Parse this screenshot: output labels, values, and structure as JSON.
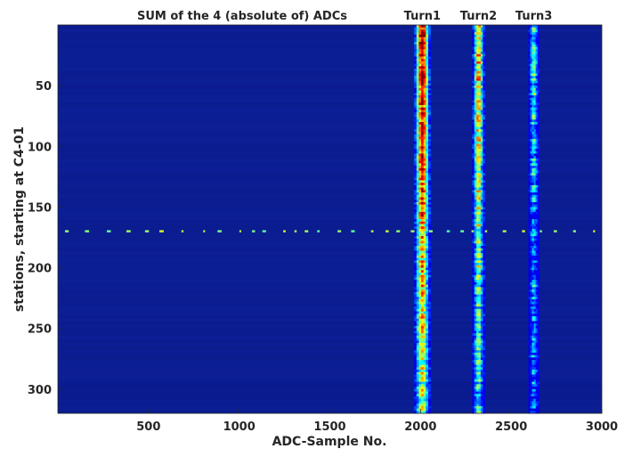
{
  "chart_data": {
    "type": "heatmap",
    "title": "SUM of the 4 (absolute of) ADCs",
    "xlabel": "ADC-Sample No.",
    "ylabel": "stations, starting at C4-01",
    "xlim": [
      0,
      3000
    ],
    "ylim": [
      0,
      320
    ],
    "y_reversed": true,
    "x_ticks": [
      500,
      1000,
      1500,
      2000,
      2500,
      3000
    ],
    "y_ticks": [
      50,
      100,
      150,
      200,
      250,
      300
    ],
    "colormap": "jet",
    "background_color": "#0a1a8c",
    "annotations": [
      {
        "text": "Turn1",
        "x": 2010
      },
      {
        "text": "Turn2",
        "x": 2320
      },
      {
        "text": "Turn3",
        "x": 2625
      }
    ],
    "bands": [
      {
        "name": "Turn1",
        "x_center": 2010,
        "width": 90,
        "intensity_start": 1.0,
        "intensity_end": 0.55
      },
      {
        "name": "Turn2",
        "x_center": 2320,
        "width": 70,
        "intensity_start": 0.72,
        "intensity_end": 0.38
      },
      {
        "name": "Turn3",
        "x_center": 2625,
        "width": 60,
        "intensity_start": 0.45,
        "intensity_end": 0.2
      }
    ],
    "highlight_rows": [
      {
        "y": 170,
        "intensity": 0.45
      }
    ],
    "grid": false
  }
}
